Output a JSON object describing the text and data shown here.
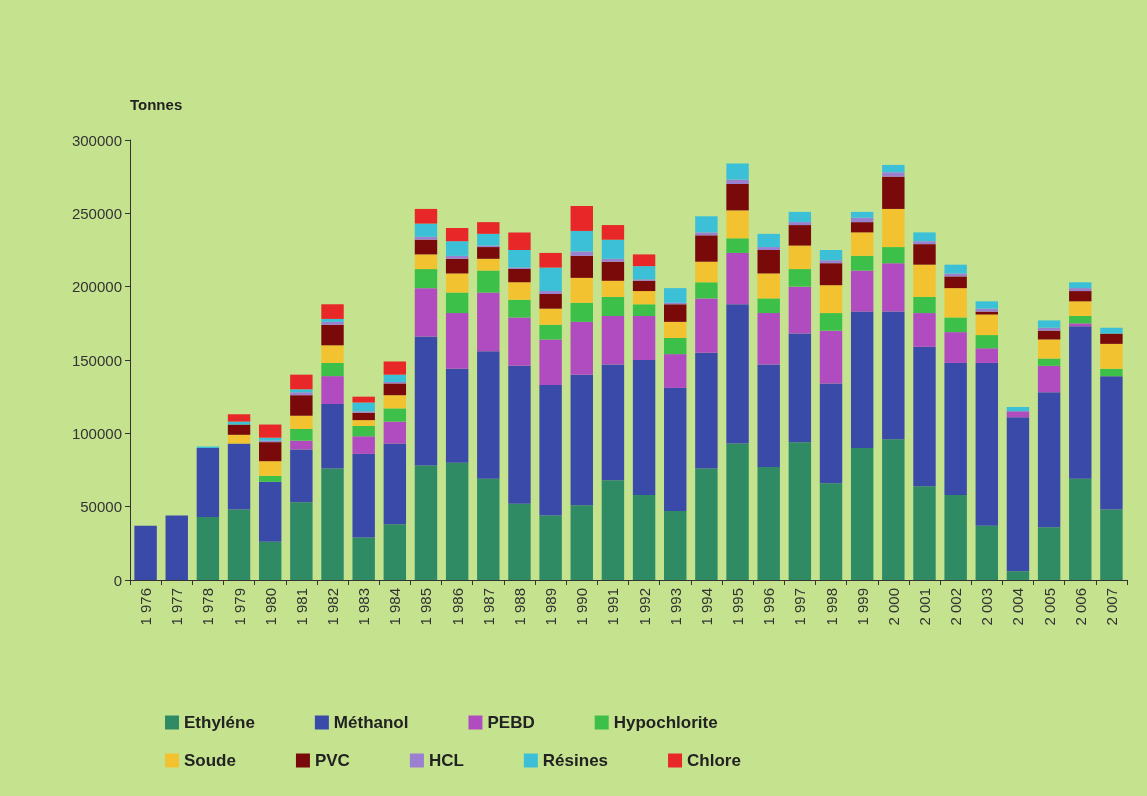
{
  "chart_data": {
    "type": "bar",
    "stacked": true,
    "ylabel": "Tonnes",
    "legend": "bottom",
    "grid": false,
    "categories": [
      "1 976",
      "1 977",
      "1 978",
      "1 979",
      "1 980",
      "1 981",
      "1 982",
      "1 983",
      "1 984",
      "1 985",
      "1 986",
      "1 987",
      "1 988",
      "1 989",
      "1 990",
      "1 991",
      "1 992",
      "1 993",
      "1 994",
      "1 995",
      "1 996",
      "1 997",
      "1 998",
      "1 999",
      "2 000",
      "2 001",
      "2 002",
      "2 003",
      "2 004",
      "2 005",
      "2 006",
      "2 007"
    ],
    "ylim": [
      0,
      300000
    ],
    "yticks": [
      0,
      50000,
      100000,
      150000,
      200000,
      250000,
      300000
    ],
    "series": [
      {
        "name": "Ethyléne",
        "color": "#2e8b63",
        "values": [
          0,
          0,
          43000,
          48000,
          26000,
          53000,
          76000,
          29000,
          38000,
          78000,
          80000,
          69000,
          52000,
          44000,
          51000,
          68000,
          58000,
          47000,
          76000,
          93000,
          77000,
          94000,
          66000,
          90000,
          96000,
          64000,
          58000,
          37000,
          6000,
          36000,
          69000,
          48000
        ]
      },
      {
        "name": "Méthanol",
        "color": "#3a4aa8",
        "values": [
          37000,
          44000,
          47000,
          45000,
          41000,
          36000,
          44000,
          57000,
          55000,
          88000,
          64000,
          87000,
          94000,
          89000,
          89000,
          79000,
          92000,
          84000,
          79000,
          95000,
          70000,
          74000,
          68000,
          93000,
          87000,
          95000,
          90000,
          111000,
          105000,
          92000,
          104000,
          91000
        ]
      },
      {
        "name": "PEBD",
        "color": "#b04cc0",
        "values": [
          0,
          0,
          0,
          0,
          0,
          6000,
          19000,
          12000,
          15000,
          33000,
          38000,
          40000,
          33000,
          31000,
          36000,
          33000,
          30000,
          23000,
          37000,
          35000,
          35000,
          32000,
          36000,
          28000,
          33000,
          23000,
          21000,
          10000,
          4000,
          18000,
          2000,
          0
        ]
      },
      {
        "name": "Hypochlorite",
        "color": "#3cc04a",
        "values": [
          0,
          0,
          0,
          0,
          4000,
          8000,
          9000,
          7000,
          9000,
          13000,
          14000,
          15000,
          12000,
          10000,
          13000,
          13000,
          8000,
          11000,
          11000,
          10000,
          10000,
          12000,
          12000,
          10000,
          11000,
          11000,
          10000,
          9000,
          0,
          5000,
          5000,
          5000
        ]
      },
      {
        "name": "Soude",
        "color": "#f2c230",
        "values": [
          0,
          0,
          0,
          6000,
          10000,
          9000,
          12000,
          4000,
          9000,
          10000,
          13000,
          8000,
          12000,
          11000,
          17000,
          11000,
          9000,
          11000,
          14000,
          19000,
          17000,
          16000,
          19000,
          16000,
          26000,
          22000,
          20000,
          14000,
          0,
          13000,
          10000,
          17000
        ]
      },
      {
        "name": "PVC",
        "color": "#7a0a0a",
        "values": [
          0,
          0,
          0,
          7000,
          13000,
          14000,
          14000,
          5000,
          8000,
          10000,
          10000,
          8000,
          9000,
          10000,
          15000,
          13000,
          7000,
          12000,
          18000,
          18000,
          16000,
          14000,
          15000,
          7000,
          22000,
          14000,
          8000,
          2000,
          0,
          6000,
          7000,
          7000
        ]
      },
      {
        "name": "HCL",
        "color": "#9b7fd0",
        "values": [
          0,
          0,
          0,
          0,
          1000,
          2000,
          2000,
          1000,
          1000,
          2000,
          2000,
          1000,
          1000,
          2000,
          3000,
          2000,
          1000,
          1000,
          2000,
          3000,
          2000,
          2000,
          2000,
          3000,
          3000,
          2000,
          2000,
          2000,
          0,
          2000,
          2000,
          0
        ]
      },
      {
        "name": "Résines",
        "color": "#3cc0d8",
        "values": [
          0,
          0,
          1000,
          2000,
          2000,
          2000,
          2000,
          6000,
          5000,
          9000,
          10000,
          8000,
          12000,
          16000,
          14000,
          13000,
          9000,
          10000,
          11000,
          11000,
          9000,
          7000,
          7000,
          4000,
          5000,
          6000,
          6000,
          5000,
          3000,
          5000,
          4000,
          4000
        ]
      },
      {
        "name": "Chlore",
        "color": "#e82828",
        "values": [
          0,
          0,
          0,
          5000,
          9000,
          10000,
          10000,
          4000,
          9000,
          10000,
          9000,
          8000,
          12000,
          10000,
          17000,
          10000,
          8000,
          0,
          0,
          0,
          0,
          0,
          0,
          0,
          0,
          0,
          0,
          0,
          0,
          0,
          0,
          0
        ]
      }
    ]
  }
}
